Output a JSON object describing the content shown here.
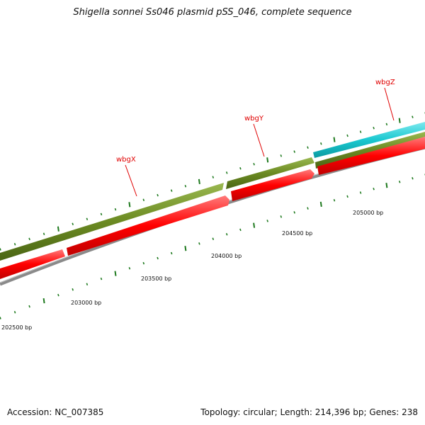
{
  "title": "Shigella sonnei Ss046 plasmid pSS_046, complete sequence",
  "footer": {
    "accession": "Accession: NC_007385",
    "summary": "Topology: circular; Length: 214,396 bp; Genes: 238"
  },
  "genes": [
    {
      "name": "wbgX"
    },
    {
      "name": "wbgY"
    },
    {
      "name": "wbgZ"
    }
  ],
  "position_labels": [
    "202500 bp",
    "203000 bp",
    "203500 bp",
    "204000 bp",
    "204500 bp",
    "205000 bp"
  ],
  "colors": {
    "forward_gene": "#6b8a22",
    "reverse_gene": "#ff0000",
    "highlight_gene": "#19c8d0",
    "backbone": "#8a8a8a",
    "ticks": "#1f7a1f",
    "gene_label": "#e00000"
  }
}
